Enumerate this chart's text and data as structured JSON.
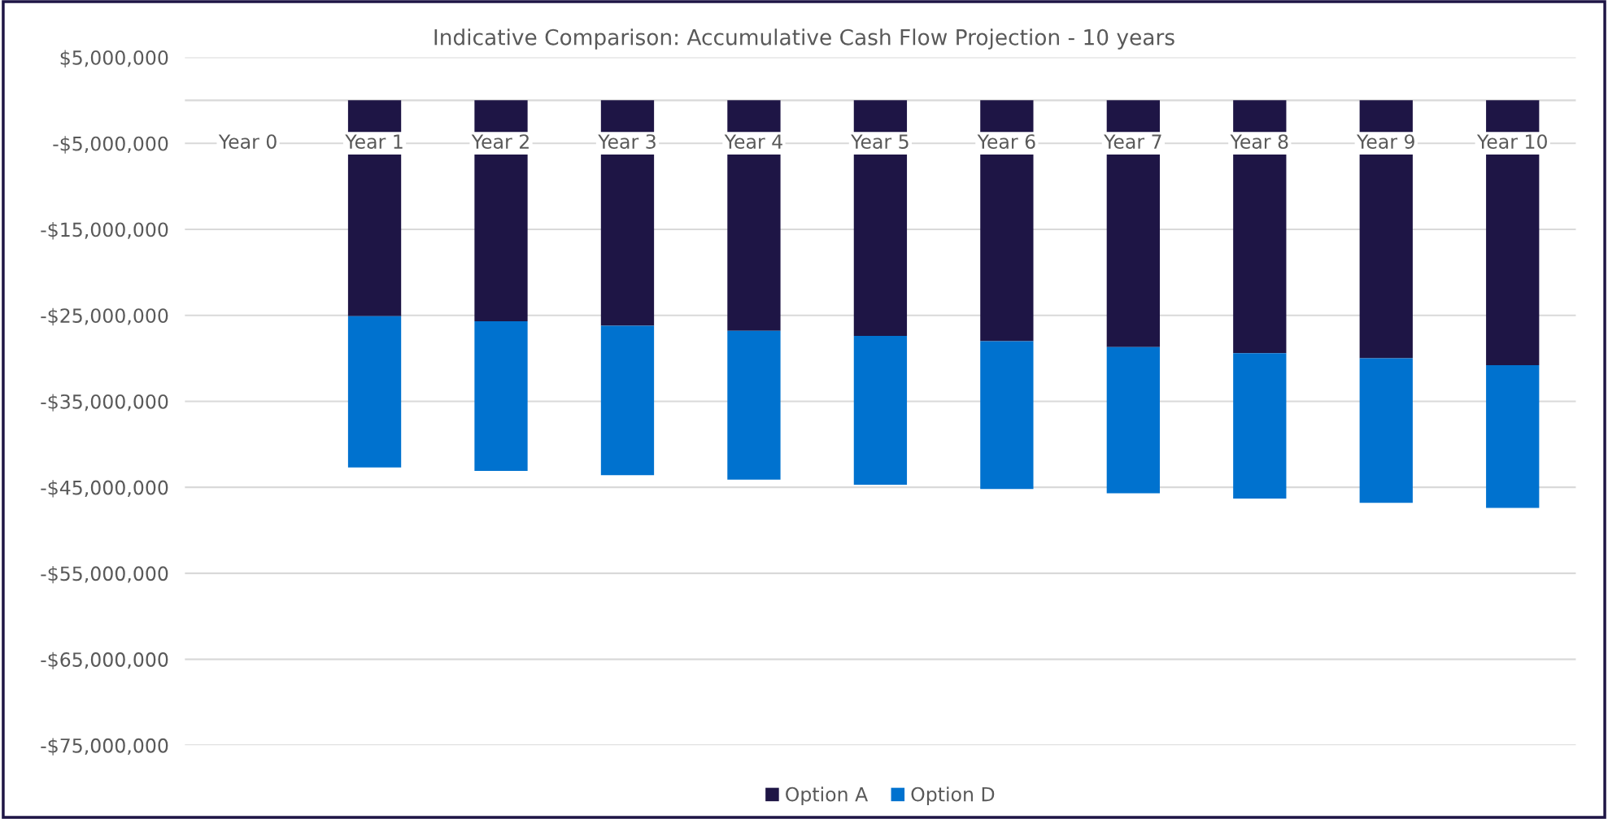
{
  "chart_data": {
    "type": "bar",
    "title": "Indicative Comparison: Accumulative Cash Flow Projection - 10 years",
    "categories": [
      "Year 0",
      "Year 1",
      "Year 2",
      "Year 3",
      "Year 4",
      "Year 5",
      "Year 6",
      "Year 7",
      "Year 8",
      "Year 9",
      "Year 10"
    ],
    "stacked": true,
    "series": [
      {
        "name": "Option A",
        "color": "#1e1545",
        "values": [
          0,
          -25100000,
          -25700000,
          -26200000,
          -26800000,
          -27400000,
          -28000000,
          -28700000,
          -29400000,
          -30000000,
          -30800000
        ]
      },
      {
        "name": "Option D",
        "color": "#0072cf",
        "values": [
          0,
          -17600000,
          -17400000,
          -17400000,
          -17300000,
          -17300000,
          -17200000,
          -17000000,
          -16900000,
          -16800000,
          -16600000
        ]
      }
    ],
    "ylim": [
      -75000000,
      5000000
    ],
    "yticks": [
      {
        "value": 5000000,
        "label": "$5,000,000"
      },
      {
        "value": -5000000,
        "label": "-$5,000,000"
      },
      {
        "value": -15000000,
        "label": "-$15,000,000"
      },
      {
        "value": -25000000,
        "label": "-$25,000,000"
      },
      {
        "value": -35000000,
        "label": "-$35,000,000"
      },
      {
        "value": -45000000,
        "label": "-$45,000,000"
      },
      {
        "value": -55000000,
        "label": "-$55,000,000"
      },
      {
        "value": -65000000,
        "label": "-$65,000,000"
      },
      {
        "value": -75000000,
        "label": "-$75,000,000"
      }
    ],
    "grid": "y",
    "legend": "bottom"
  }
}
